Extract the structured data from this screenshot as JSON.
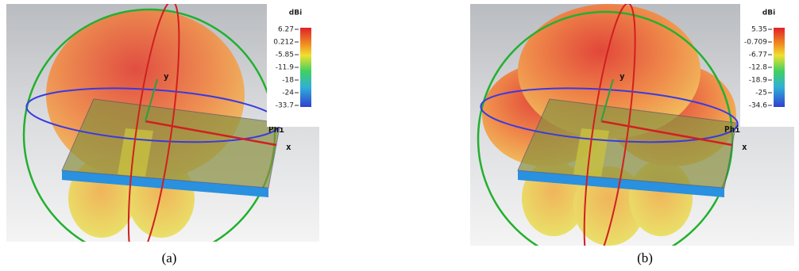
{
  "panels": [
    {
      "caption": "(a)",
      "colorbar": {
        "unit": "dBi",
        "labels": [
          "6.27",
          "0.212",
          "-5.85",
          "-11.9",
          "-18",
          "-24",
          "-33.7"
        ]
      },
      "axes": {
        "y": "y",
        "x": "x",
        "phi": "Phi"
      }
    },
    {
      "caption": "(b)",
      "colorbar": {
        "unit": "dBi",
        "labels": [
          "5.35",
          "-0.709",
          "-6.77",
          "-12.8",
          "-18.9",
          "-25",
          "-34.6"
        ]
      },
      "axes": {
        "y": "y",
        "x": "x",
        "phi": "Phi"
      }
    }
  ]
}
